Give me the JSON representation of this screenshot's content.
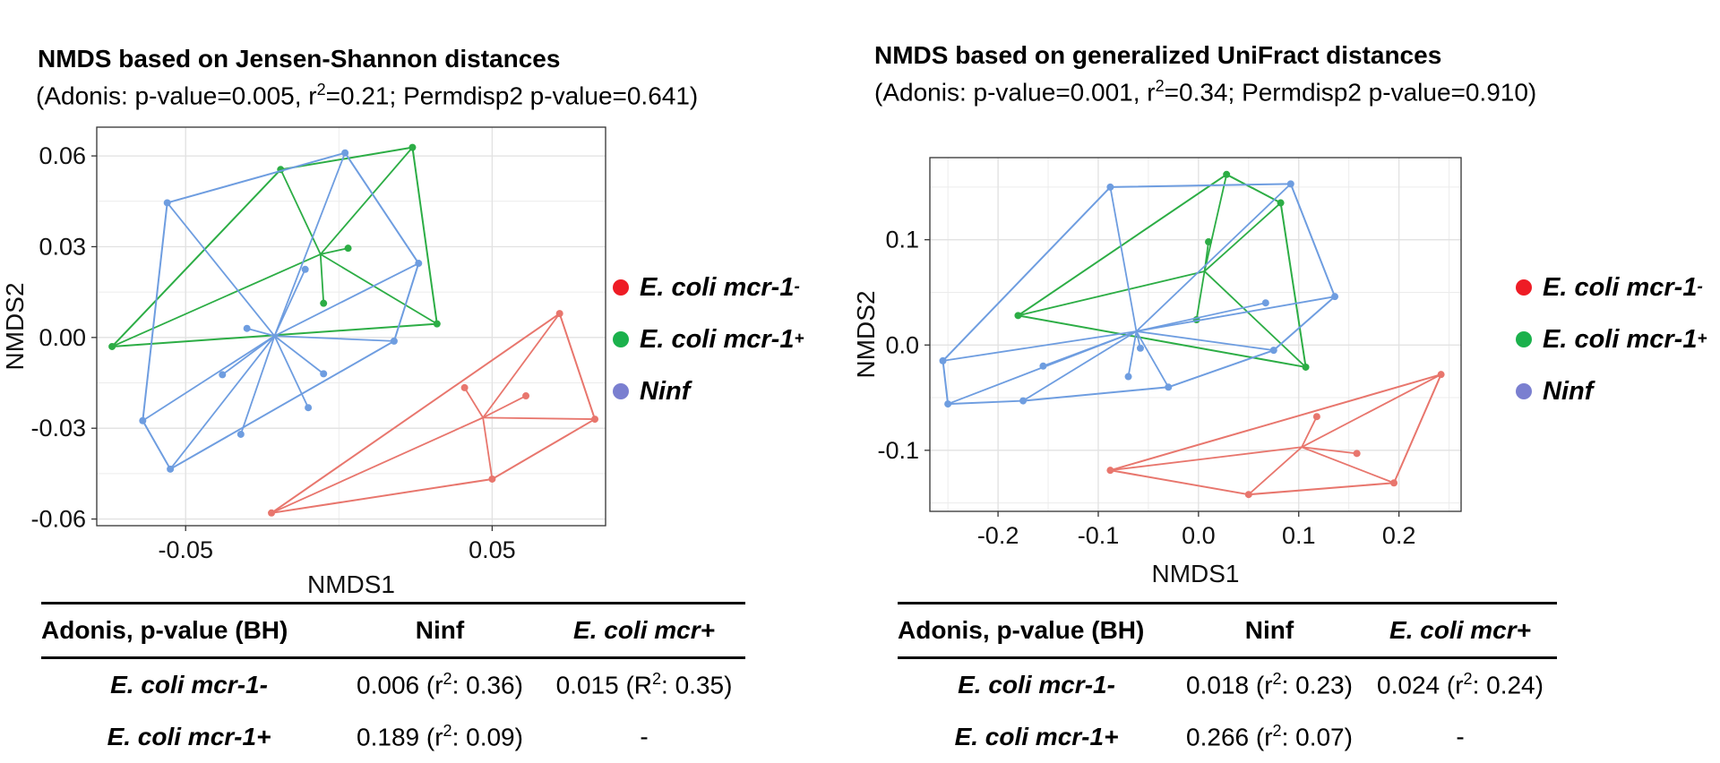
{
  "chart_data": [
    {
      "type": "scatter",
      "title": "NMDS based on Jensen-Shannon distances",
      "subtitle": {
        "adonis_p": "0.005",
        "r2": "0.21",
        "permdisp2_p": "0.641"
      },
      "xlabel": "NMDS1",
      "ylabel": "NMDS2",
      "xlim": [
        -0.079,
        0.087
      ],
      "ylim": [
        -0.0622,
        0.0695
      ],
      "xticks": [
        -0.05,
        0.05
      ],
      "xtick_labels": [
        "-0.05",
        "0.05"
      ],
      "yticks": [
        0.06,
        0.03,
        0.0,
        -0.03,
        -0.06
      ],
      "ytick_labels": [
        "0.06",
        "0.03",
        "0.00",
        "-0.03",
        "-0.06"
      ],
      "series": [
        {
          "name": "E. coli mcr-1-",
          "color": "#E8766D",
          "centroid": [
            0.047,
            -0.0265
          ],
          "points": [
            [
              0.072,
              0.0079
            ],
            [
              0.061,
              -0.0193
            ],
            [
              0.0835,
              -0.027
            ],
            [
              0.041,
              -0.0166
            ],
            [
              0.05,
              -0.0468
            ],
            [
              -0.022,
              -0.058
            ]
          ],
          "hull": [
            0,
            2,
            4,
            5
          ]
        },
        {
          "name": "E. coli mcr-1+",
          "color": "#2CAD45",
          "centroid": [
            -0.006,
            0.0275
          ],
          "points": [
            [
              0.024,
              0.0628
            ],
            [
              -0.019,
              0.0555
            ],
            [
              0.003,
              0.0295
            ],
            [
              -0.005,
              0.0113
            ],
            [
              0.032,
              0.0045
            ],
            [
              -0.074,
              -0.003
            ]
          ],
          "hull": [
            0,
            4,
            5,
            1
          ]
        },
        {
          "name": "Ninf",
          "color": "#6E9DE0",
          "centroid": [
            -0.021,
            0.0005
          ],
          "points": [
            [
              0.002,
              0.061
            ],
            [
              -0.056,
              0.0445
            ],
            [
              0.026,
              0.0245
            ],
            [
              -0.011,
              0.0225
            ],
            [
              -0.03,
              0.003
            ],
            [
              0.018,
              -0.0012
            ],
            [
              -0.038,
              -0.0123
            ],
            [
              -0.005,
              -0.012
            ],
            [
              -0.064,
              -0.0275
            ],
            [
              -0.01,
              -0.0232
            ],
            [
              -0.032,
              -0.032
            ],
            [
              -0.055,
              -0.0435
            ]
          ],
          "hull": [
            0,
            2,
            5,
            11,
            8,
            1
          ]
        }
      ]
    },
    {
      "type": "scatter",
      "title": "NMDS based on generalized  UniFract distances",
      "subtitle": {
        "adonis_p": "0.001",
        "r2": "0.34",
        "permdisp2_p": "0.910"
      },
      "xlabel": "NMDS1",
      "ylabel": "NMDS2",
      "xlim": [
        -0.268,
        0.262
      ],
      "ylim": [
        -0.158,
        0.178
      ],
      "xticks": [
        -0.2,
        -0.1,
        0.0,
        0.1,
        0.2
      ],
      "xtick_labels": [
        "-0.2",
        "-0.1",
        "0.0",
        "0.1",
        "0.2"
      ],
      "yticks": [
        0.1,
        0.0,
        -0.1
      ],
      "ytick_labels": [
        "0.1",
        "0.0",
        "-0.1"
      ],
      "series": [
        {
          "name": "E. coli mcr-1-",
          "color": "#E8766D",
          "centroid": [
            0.103,
            -0.097
          ],
          "points": [
            [
              0.242,
              -0.028
            ],
            [
              0.118,
              -0.068
            ],
            [
              0.158,
              -0.103
            ],
            [
              0.195,
              -0.131
            ],
            [
              0.05,
              -0.142
            ],
            [
              -0.088,
              -0.119
            ]
          ],
          "hull": [
            0,
            3,
            4,
            5
          ]
        },
        {
          "name": "E. coli mcr-1+",
          "color": "#2CAD45",
          "centroid": [
            0.006,
            0.07
          ],
          "points": [
            [
              0.028,
              0.162
            ],
            [
              0.082,
              0.135
            ],
            [
              0.01,
              0.098
            ],
            [
              -0.002,
              0.024
            ],
            [
              -0.18,
              0.028
            ],
            [
              0.107,
              -0.021
            ]
          ],
          "hull": [
            0,
            1,
            5,
            4
          ]
        },
        {
          "name": "Ninf",
          "color": "#6E9DE0",
          "centroid": [
            -0.062,
            0.013
          ],
          "points": [
            [
              -0.088,
              0.15
            ],
            [
              0.092,
              0.153
            ],
            [
              0.136,
              0.046
            ],
            [
              0.067,
              0.04
            ],
            [
              0.075,
              -0.005
            ],
            [
              -0.255,
              -0.015
            ],
            [
              -0.058,
              -0.003
            ],
            [
              -0.155,
              -0.02
            ],
            [
              -0.03,
              -0.04
            ],
            [
              -0.07,
              -0.03
            ],
            [
              -0.25,
              -0.056
            ],
            [
              -0.175,
              -0.053
            ]
          ],
          "hull": [
            0,
            1,
            2,
            4,
            8,
            11,
            10,
            5
          ]
        }
      ]
    }
  ],
  "left": {
    "title": "NMDS based on Jensen-Shannon distances",
    "subtitle": {
      "pre": "(Adonis: p-value=0.005,  r",
      "sup": "2",
      "post": "=0.21; Permdisp2 p-value=0.641)"
    },
    "legend": [
      {
        "main": "E. coli mcr-1",
        "sup": "-",
        "color": "#EE1C25"
      },
      {
        "main": "E. coli mcr-1",
        "sup": "+",
        "color": "#1BB14C"
      },
      {
        "main": "Ninf",
        "sup": "",
        "color": "#7A7FD0"
      }
    ],
    "table": {
      "header": [
        "Adonis, p-value (BH)",
        "Ninf",
        "E. coli mcr+"
      ],
      "rows": [
        {
          "label": "E. coli mcr-1-",
          "c1": {
            "pre": "0.006 (r",
            "sup": "2",
            "post": ": 0.36)"
          },
          "c2": {
            "pre": "0.015 (R",
            "sup": "2",
            "post": ": 0.35)"
          }
        },
        {
          "label": "E. coli mcr-1+",
          "c1": {
            "pre": "0.189 (r",
            "sup": "2",
            "post": ": 0.09)"
          },
          "c2": {
            "pre": "-",
            "sup": "",
            "post": ""
          }
        }
      ]
    }
  },
  "right": {
    "title": "NMDS based on generalized  UniFract distances",
    "subtitle": {
      "pre": "(Adonis: p-value=0.001,  r",
      "sup": "2",
      "post": "=0.34; Permdisp2 p-value=0.910)"
    },
    "legend": [
      {
        "main": "E. coli mcr-1",
        "sup": "-",
        "color": "#EE1C25"
      },
      {
        "main": "E. coli mcr-1",
        "sup": "+",
        "color": "#1BB14C"
      },
      {
        "main": "Ninf",
        "sup": "",
        "color": "#7A7FD0"
      }
    ],
    "table": {
      "header": [
        "Adonis, p-value (BH)",
        "Ninf",
        "E. coli mcr+"
      ],
      "rows": [
        {
          "label": "E. coli mcr-1-",
          "c1": {
            "pre": "0.018 (r",
            "sup": "2",
            "post": ": 0.23)"
          },
          "c2": {
            "pre": "0.024 (r",
            "sup": "2",
            "post": ": 0.24)"
          }
        },
        {
          "label": "E. coli mcr-1+",
          "c1": {
            "pre": "0.266 (r",
            "sup": "2",
            "post": ": 0.07)"
          },
          "c2": {
            "pre": "-",
            "sup": "",
            "post": ""
          }
        }
      ]
    }
  }
}
